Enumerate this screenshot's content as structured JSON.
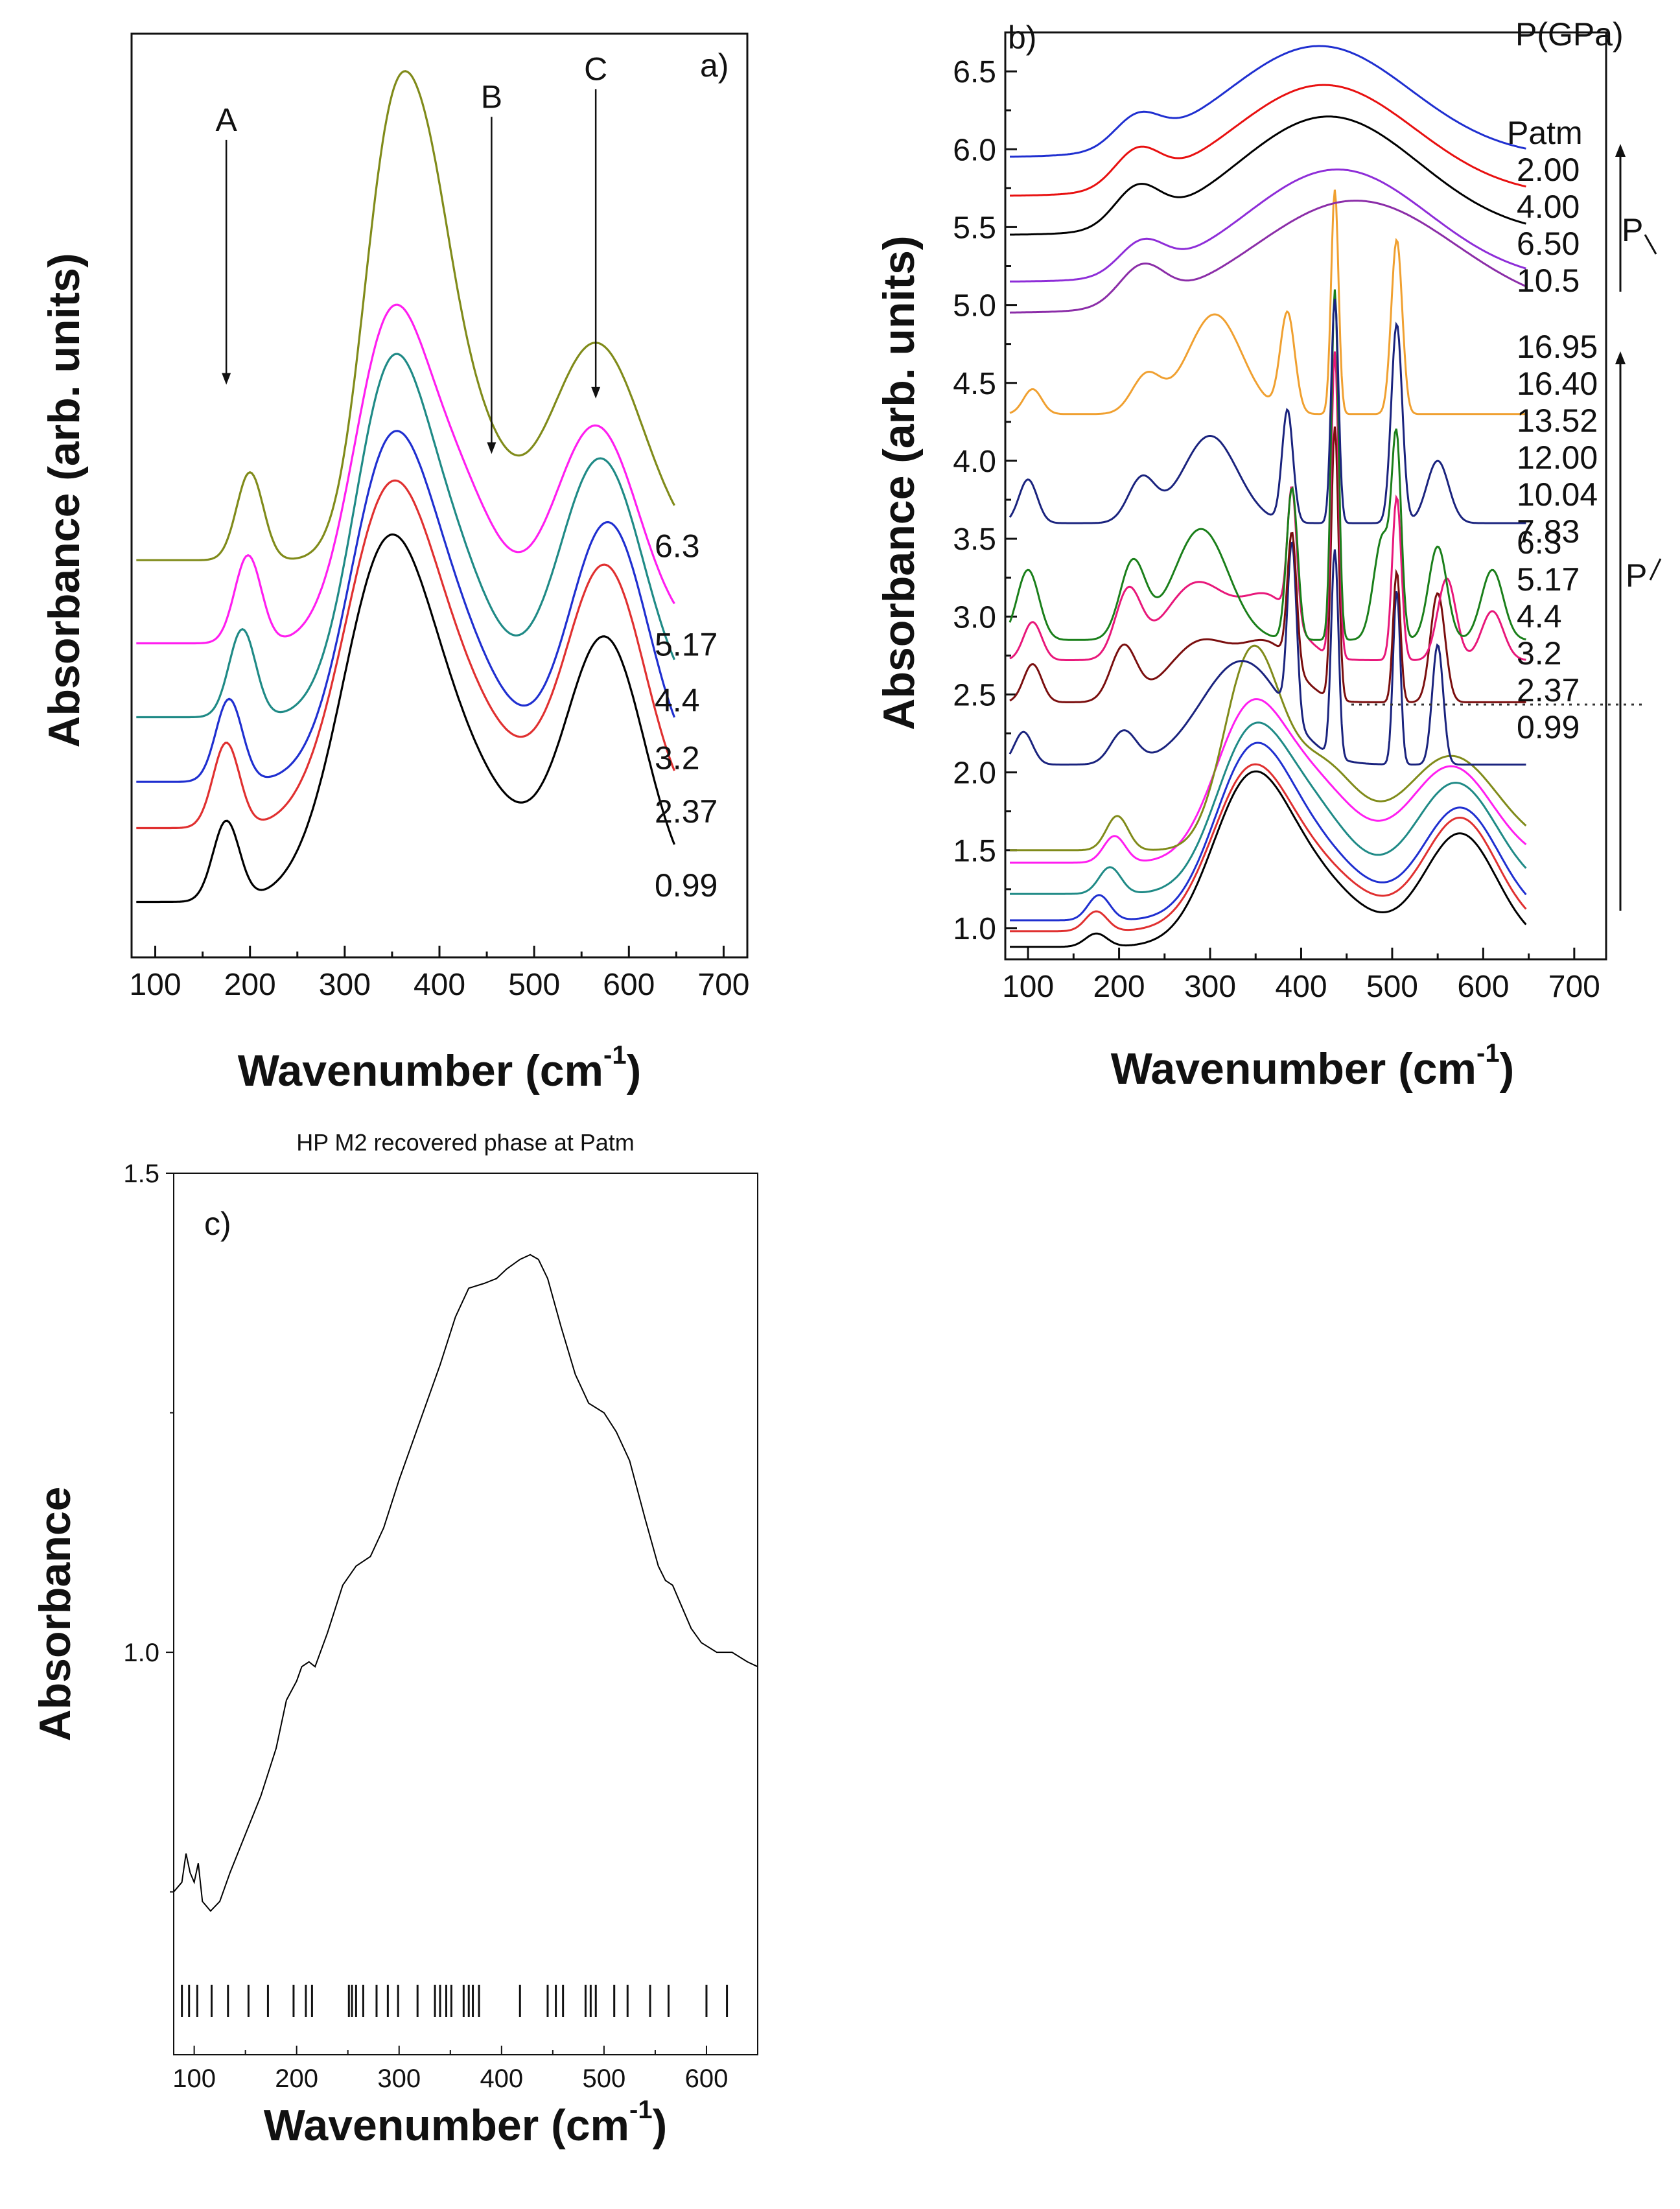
{
  "chart_data": [
    {
      "panel": "a)",
      "type": "line",
      "xlabel": "Wavenumber (cm",
      "xlabel_sup": "-1",
      "xlabel_close": ")",
      "ylabel": "Absorbance (arb. units)",
      "xlim": [
        75,
        725
      ],
      "ylim": [
        0,
        1
      ],
      "xticks": [
        100,
        200,
        300,
        400,
        500,
        600,
        700
      ],
      "band_markers": [
        {
          "label": "A",
          "x": 175,
          "y_from": 0.885,
          "y_to": 0.62
        },
        {
          "label": "B",
          "x": 455,
          "y_from": 0.91,
          "y_to": 0.545
        },
        {
          "label": "C",
          "x": 565,
          "y_from": 0.94,
          "y_to": 0.605
        }
      ],
      "series": [
        {
          "name": "0.99",
          "color": "#000000",
          "offset": 0.06,
          "scale": 0.54,
          "peaks": [
            [
              175,
              0.16,
              14
            ],
            [
              340,
              0.48,
              45
            ],
            [
              395,
              0.33,
              70
            ],
            [
              575,
              0.52,
              42
            ]
          ]
        },
        {
          "name": "2.37",
          "color": "#e03030",
          "offset": 0.14,
          "scale": 0.54,
          "peaks": [
            [
              175,
              0.17,
              14
            ],
            [
              342,
              0.48,
              45
            ],
            [
              400,
              0.3,
              65
            ],
            [
              575,
              0.52,
              42
            ]
          ]
        },
        {
          "name": "3.2",
          "color": "#1f2fd0",
          "offset": 0.19,
          "scale": 0.56,
          "peaks": [
            [
              178,
              0.16,
              14
            ],
            [
              343,
              0.5,
              42
            ],
            [
              405,
              0.3,
              55
            ],
            [
              578,
              0.5,
              42
            ]
          ]
        },
        {
          "name": "4.4",
          "color": "#1f8a86",
          "offset": 0.26,
          "scale": 0.56,
          "peaks": [
            [
              192,
              0.17,
              14
            ],
            [
              345,
              0.58,
              38
            ],
            [
              410,
              0.3,
              45
            ],
            [
              570,
              0.5,
              45
            ]
          ]
        },
        {
          "name": "5.17",
          "color": "#ff1ef0",
          "offset": 0.34,
          "scale": 0.56,
          "peaks": [
            [
              198,
              0.17,
              14
            ],
            [
              345,
              0.55,
              38
            ],
            [
              415,
              0.3,
              45
            ],
            [
              565,
              0.42,
              45
            ]
          ]
        },
        {
          "name": "6.3",
          "color": "#808b1a",
          "offset": 0.43,
          "scale": 0.56,
          "peaks": [
            [
              200,
              0.17,
              14
            ],
            [
              348,
              0.75,
              30
            ],
            [
              390,
              0.3,
              25
            ],
            [
              420,
              0.32,
              40
            ],
            [
              565,
              0.42,
              50
            ]
          ]
        }
      ]
    },
    {
      "panel": "b)",
      "type": "line",
      "xlabel": "Wavenumber (cm",
      "xlabel_sup": "-1",
      "xlabel_close": ")",
      "ylabel": "Absorbance (arb. units)",
      "xlim": [
        75,
        735
      ],
      "ylim": [
        0.8,
        6.75
      ],
      "xticks": [
        100,
        200,
        300,
        400,
        500,
        600,
        700
      ],
      "yticks": [
        "1.0",
        "1.5",
        "2.0",
        "2.5",
        "3.0",
        "3.5",
        "4.0",
        "4.5",
        "5.0",
        "5.5",
        "6.0",
        "6.5"
      ],
      "legend_title": "P(GPa)",
      "arrow_label_decompression": "P",
      "arrow_label_compression": "P",
      "divider_y": 2.42,
      "series": [
        {
          "name": "0.99",
          "color": "#000000",
          "base": 0.88,
          "amp": 0.85,
          "peaks": [
            [
              175,
              0.1,
              12
            ],
            [
              340,
              0.9,
              40
            ],
            [
              395,
              0.6,
              60
            ],
            [
              575,
              0.85,
              40
            ]
          ]
        },
        {
          "name": "2.37",
          "color": "#e03030",
          "base": 0.98,
          "amp": 0.85,
          "peaks": [
            [
              175,
              0.15,
              12
            ],
            [
              340,
              0.9,
              40
            ],
            [
              400,
              0.55,
              60
            ],
            [
              575,
              0.85,
              40
            ]
          ]
        },
        {
          "name": "3.2",
          "color": "#1f2fd0",
          "base": 1.05,
          "amp": 0.9,
          "peaks": [
            [
              178,
              0.18,
              12
            ],
            [
              342,
              0.95,
              40
            ],
            [
              405,
              0.55,
              55
            ],
            [
              575,
              0.8,
              42
            ]
          ]
        },
        {
          "name": "4.4",
          "color": "#1f8a86",
          "base": 1.22,
          "amp": 0.95,
          "peaks": [
            [
              190,
              0.18,
              12
            ],
            [
              342,
              0.95,
              38
            ],
            [
              410,
              0.55,
              45
            ],
            [
              570,
              0.75,
              45
            ]
          ]
        },
        {
          "name": "5.17",
          "color": "#ff1ef0",
          "base": 1.42,
          "amp": 0.95,
          "peaks": [
            [
              195,
              0.18,
              12
            ],
            [
              342,
              0.95,
              38
            ],
            [
              415,
              0.5,
              45
            ],
            [
              565,
              0.65,
              45
            ]
          ]
        },
        {
          "name": "6.3",
          "color": "#808b1a",
          "base": 1.5,
          "amp": 1.1,
          "peaks": [
            [
              198,
              0.2,
              12
            ],
            [
              345,
              1.1,
              30
            ],
            [
              420,
              0.5,
              40
            ],
            [
              565,
              0.55,
              50
            ]
          ]
        },
        {
          "name": "7.83",
          "color": "#1a237e",
          "base": 2.05,
          "amp": 0.7,
          "peaks": [
            [
              95,
              0.3,
              10
            ],
            [
              205,
              0.3,
              14
            ],
            [
              335,
              0.95,
              45
            ],
            [
              390,
              1.6,
              5
            ],
            [
              437,
              1.9,
              4
            ],
            [
              505,
              1.6,
              4
            ],
            [
              550,
              1.1,
              6
            ]
          ]
        },
        {
          "name": "10.04",
          "color": "#7a0e0e",
          "base": 2.45,
          "amp": 0.7,
          "peaks": [
            [
              105,
              0.35,
              10
            ],
            [
              205,
              0.5,
              14
            ],
            [
              290,
              0.55,
              35
            ],
            [
              365,
              0.5,
              30
            ],
            [
              390,
              1.2,
              5
            ],
            [
              437,
              2.5,
              4
            ],
            [
              505,
              1.2,
              4
            ],
            [
              550,
              1.0,
              8
            ]
          ]
        },
        {
          "name": "12.00",
          "color": "#e8177a",
          "base": 2.72,
          "amp": 0.7,
          "peaks": [
            [
              105,
              0.35,
              10
            ],
            [
              210,
              0.6,
              14
            ],
            [
              285,
              0.7,
              35
            ],
            [
              365,
              0.55,
              30
            ],
            [
              390,
              1.2,
              5
            ],
            [
              437,
              2.8,
              4
            ],
            [
              505,
              1.5,
              5
            ],
            [
              560,
              0.75,
              10
            ],
            [
              610,
              0.45,
              12
            ]
          ]
        },
        {
          "name": "13.52",
          "color": "#1a7f1a",
          "base": 2.85,
          "amp": 0.75,
          "peaks": [
            [
              100,
              0.6,
              12
            ],
            [
              215,
              0.65,
              14
            ],
            [
              290,
              0.95,
              30
            ],
            [
              390,
              1.3,
              6
            ],
            [
              437,
              3.0,
              4
            ],
            [
              490,
              0.9,
              10
            ],
            [
              505,
              1.5,
              5
            ],
            [
              550,
              0.8,
              10
            ],
            [
              610,
              0.6,
              12
            ]
          ]
        },
        {
          "name": "16.40",
          "color": "#1a237e",
          "base": 3.6,
          "amp": 0.8,
          "peaks": [
            [
              100,
              0.35,
              10
            ],
            [
              225,
              0.35,
              15
            ],
            [
              300,
              0.7,
              30
            ],
            [
              385,
              0.9,
              6
            ],
            [
              437,
              1.8,
              4
            ],
            [
              505,
              1.6,
              6
            ],
            [
              550,
              0.5,
              12
            ]
          ]
        },
        {
          "name": "16.95",
          "color": "#f0a030",
          "base": 4.3,
          "amp": 0.8,
          "peaks": [
            [
              105,
              0.2,
              10
            ],
            [
              230,
              0.3,
              16
            ],
            [
              305,
              0.8,
              30
            ],
            [
              385,
              0.8,
              8
            ],
            [
              437,
              1.8,
              4
            ],
            [
              505,
              1.4,
              6
            ]
          ]
        },
        {
          "name": "10.5",
          "color": "#8b2da8",
          "base": 4.95,
          "amp": 0.8,
          "peaks": [
            [
              225,
              0.3,
              25
            ],
            [
              460,
              0.9,
              110
            ]
          ]
        },
        {
          "name": "6.50",
          "color": "#8e2dd8",
          "base": 5.15,
          "amp": 0.8,
          "peaks": [
            [
              225,
              0.25,
              25
            ],
            [
              440,
              0.9,
              100
            ]
          ]
        },
        {
          "name": "4.00",
          "color": "#000000",
          "base": 5.45,
          "amp": 0.8,
          "peaks": [
            [
              220,
              0.3,
              25
            ],
            [
              430,
              0.95,
              100
            ]
          ]
        },
        {
          "name": "2.00",
          "color": "#e81010",
          "base": 5.7,
          "amp": 0.75,
          "peaks": [
            [
              220,
              0.3,
              25
            ],
            [
              425,
              0.95,
              100
            ]
          ]
        },
        {
          "name": "Patm",
          "color": "#1f2fd0",
          "base": 5.95,
          "amp": 0.75,
          "peaks": [
            [
              220,
              0.25,
              25
            ],
            [
              420,
              0.95,
              100
            ]
          ]
        }
      ]
    },
    {
      "panel": "c)",
      "type": "line",
      "title": "HP M2 recovered phase at Patm",
      "xlabel": "Wavenumber (cm",
      "xlabel_sup": "-1",
      "xlabel_close": ")",
      "ylabel": "Absorbance",
      "xlim": [
        80,
        650
      ],
      "ylim": [
        0.58,
        1.5
      ],
      "xticks": [
        100,
        200,
        300,
        400,
        500,
        600
      ],
      "yticks": [
        "1.0",
        "1.5"
      ],
      "series": [
        {
          "name": "HP M2",
          "color": "#000000",
          "points": [
            [
              80,
              0.75
            ],
            [
              88,
              0.76
            ],
            [
              92,
              0.79
            ],
            [
              96,
              0.77
            ],
            [
              100,
              0.76
            ],
            [
              104,
              0.78
            ],
            [
              108,
              0.74
            ],
            [
              116,
              0.73
            ],
            [
              125,
              0.74
            ],
            [
              135,
              0.77
            ],
            [
              150,
              0.81
            ],
            [
              165,
              0.85
            ],
            [
              180,
              0.9
            ],
            [
              190,
              0.95
            ],
            [
              200,
              0.97
            ],
            [
              205,
              0.985
            ],
            [
              212,
              0.99
            ],
            [
              218,
              0.985
            ],
            [
              230,
              1.02
            ],
            [
              245,
              1.07
            ],
            [
              258,
              1.09
            ],
            [
              272,
              1.1
            ],
            [
              285,
              1.13
            ],
            [
              300,
              1.18
            ],
            [
              320,
              1.24
            ],
            [
              340,
              1.3
            ],
            [
              355,
              1.35
            ],
            [
              368,
              1.38
            ],
            [
              383,
              1.385
            ],
            [
              395,
              1.39
            ],
            [
              405,
              1.4
            ],
            [
              418,
              1.41
            ],
            [
              428,
              1.415
            ],
            [
              436,
              1.41
            ],
            [
              445,
              1.39
            ],
            [
              458,
              1.34
            ],
            [
              472,
              1.29
            ],
            [
              485,
              1.26
            ],
            [
              500,
              1.25
            ],
            [
              512,
              1.23
            ],
            [
              525,
              1.2
            ],
            [
              540,
              1.14
            ],
            [
              553,
              1.09
            ],
            [
              560,
              1.075
            ],
            [
              567,
              1.07
            ],
            [
              575,
              1.05
            ],
            [
              585,
              1.025
            ],
            [
              595,
              1.01
            ],
            [
              610,
              1.0
            ],
            [
              625,
              1.0
            ],
            [
              640,
              0.99
            ],
            [
              650,
              0.985
            ]
          ]
        }
      ],
      "stick_positions": [
        88,
        95,
        103,
        117,
        133,
        153,
        172,
        197,
        209,
        215,
        251,
        254,
        258,
        265,
        278,
        289,
        299,
        318,
        335,
        340,
        346,
        351,
        363,
        368,
        372,
        378,
        418,
        445,
        453,
        460,
        482,
        487,
        492,
        510,
        523,
        545,
        563,
        600,
        620
      ]
    }
  ]
}
